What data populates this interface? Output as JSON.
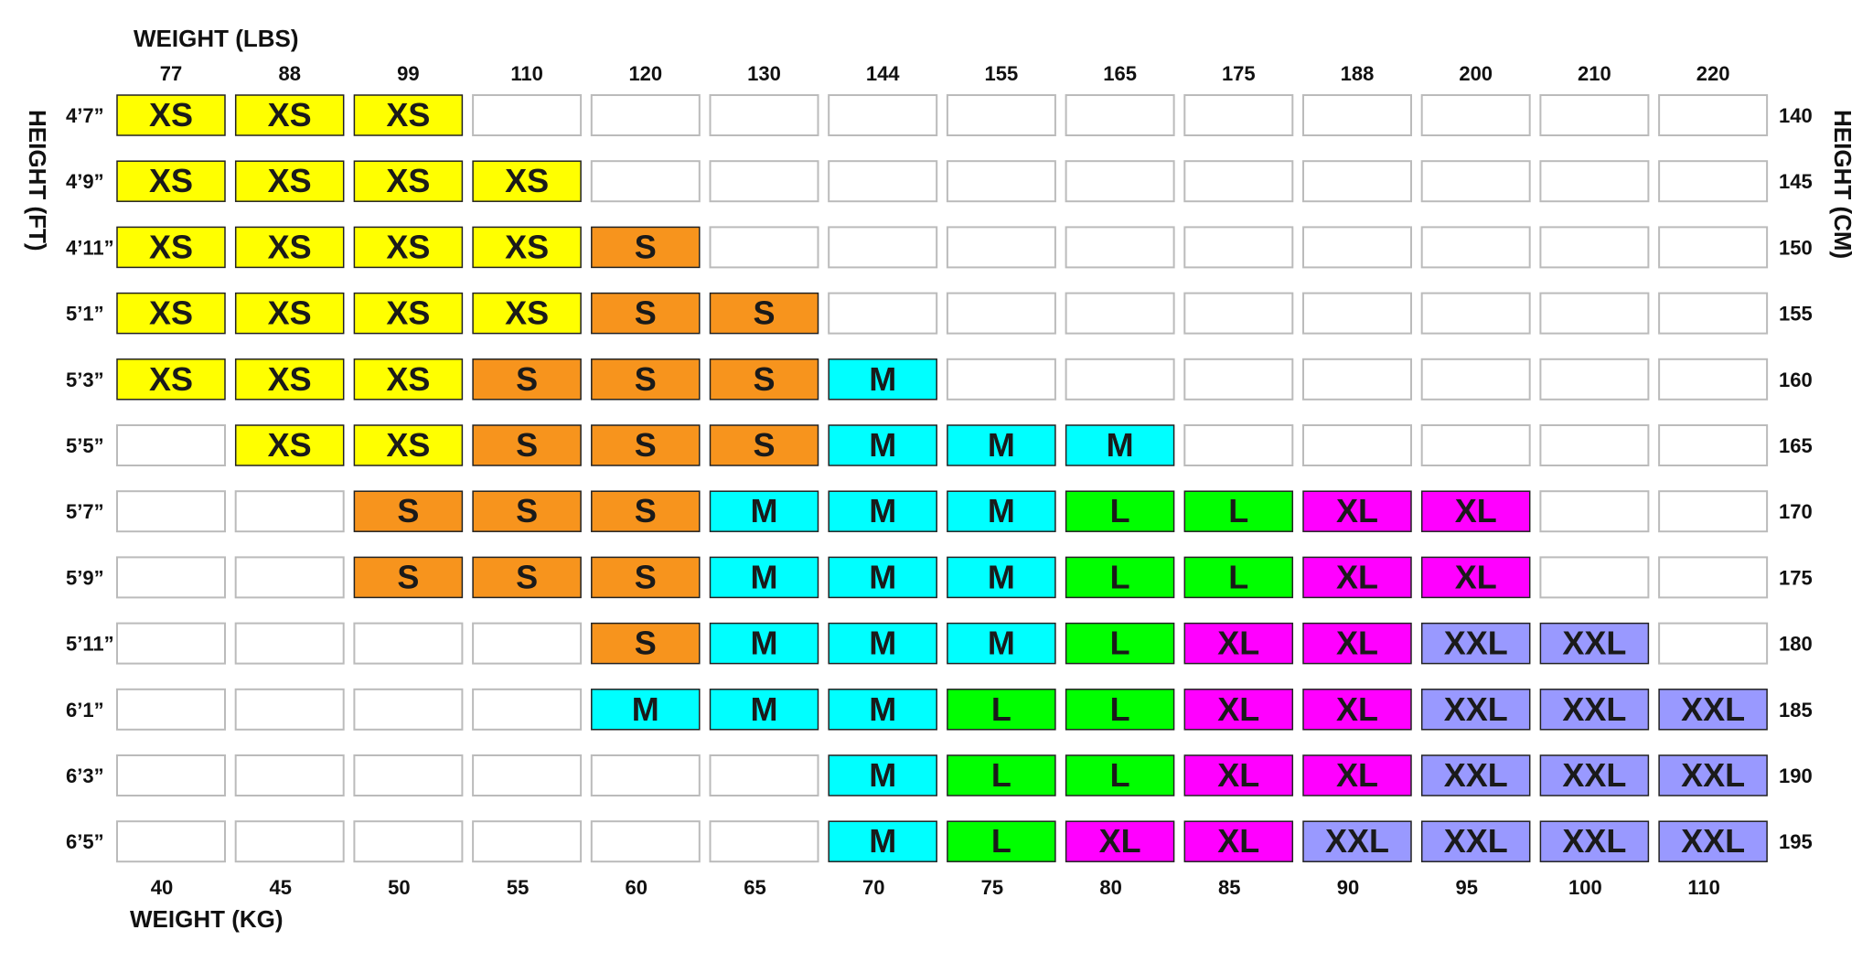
{
  "titles": {
    "top": "WEIGHT (LBS)",
    "bottom": "WEIGHT (KG)",
    "left": "HEIGHT (FT)",
    "right": "HEIGHT (CM)"
  },
  "colors": {
    "XS": "#ffff00",
    "S": "#f7941d",
    "M": "#00ffff",
    "L": "#00ff00",
    "XL": "#ff00ff",
    "XXL": "#9999ff",
    "empty_border": "#bbbbbb",
    "filled_border": "#222222"
  },
  "chart_data": {
    "type": "table",
    "title": "",
    "x_top": [
      "77",
      "88",
      "99",
      "110",
      "120",
      "130",
      "144",
      "155",
      "165",
      "175",
      "188",
      "200",
      "210",
      "220"
    ],
    "x_bottom": [
      "40",
      "45",
      "50",
      "55",
      "60",
      "65",
      "70",
      "75",
      "80",
      "85",
      "90",
      "95",
      "100",
      "110"
    ],
    "y_left": [
      "4’7”",
      "4’9”",
      "4’11”",
      "5’1”",
      "5’3”",
      "5’5”",
      "5’7”",
      "5’9”",
      "5’11”",
      "6’1”",
      "6’3”",
      "6’5”"
    ],
    "y_right": [
      "140",
      "145",
      "150",
      "155",
      "160",
      "165",
      "170",
      "175",
      "180",
      "185",
      "190",
      "195"
    ],
    "xlabel_top": "WEIGHT (LBS)",
    "xlabel_bottom": "WEIGHT (KG)",
    "ylabel_left": "HEIGHT (FT)",
    "ylabel_right": "HEIGHT (CM)",
    "grid": [
      [
        "XS",
        "XS",
        "XS",
        "",
        "",
        "",
        "",
        "",
        "",
        "",
        "",
        "",
        "",
        ""
      ],
      [
        "XS",
        "XS",
        "XS",
        "XS",
        "",
        "",
        "",
        "",
        "",
        "",
        "",
        "",
        "",
        ""
      ],
      [
        "XS",
        "XS",
        "XS",
        "XS",
        "S",
        "",
        "",
        "",
        "",
        "",
        "",
        "",
        "",
        ""
      ],
      [
        "XS",
        "XS",
        "XS",
        "XS",
        "S",
        "S",
        "",
        "",
        "",
        "",
        "",
        "",
        "",
        ""
      ],
      [
        "XS",
        "XS",
        "XS",
        "S",
        "S",
        "S",
        "M",
        "",
        "",
        "",
        "",
        "",
        "",
        ""
      ],
      [
        "",
        "XS",
        "XS",
        "S",
        "S",
        "S",
        "M",
        "M",
        "M",
        "",
        "",
        "",
        "",
        ""
      ],
      [
        "",
        "",
        "S",
        "S",
        "S",
        "M",
        "M",
        "M",
        "L",
        "L",
        "XL",
        "XL",
        "",
        ""
      ],
      [
        "",
        "",
        "S",
        "S",
        "S",
        "M",
        "M",
        "M",
        "L",
        "L",
        "XL",
        "XL",
        "",
        ""
      ],
      [
        "",
        "",
        "",
        "",
        "S",
        "M",
        "M",
        "M",
        "L",
        "XL",
        "XL",
        "XXL",
        "XXL",
        ""
      ],
      [
        "",
        "",
        "",
        "",
        "M",
        "M",
        "M",
        "L",
        "L",
        "XL",
        "XL",
        "XXL",
        "XXL",
        "XXL"
      ],
      [
        "",
        "",
        "",
        "",
        "",
        "",
        "M",
        "L",
        "L",
        "XL",
        "XL",
        "XXL",
        "XXL",
        "XXL"
      ],
      [
        "",
        "",
        "",
        "",
        "",
        "",
        "M",
        "L",
        "XL",
        "XL",
        "XXL",
        "XXL",
        "XXL",
        "XXL"
      ]
    ]
  }
}
